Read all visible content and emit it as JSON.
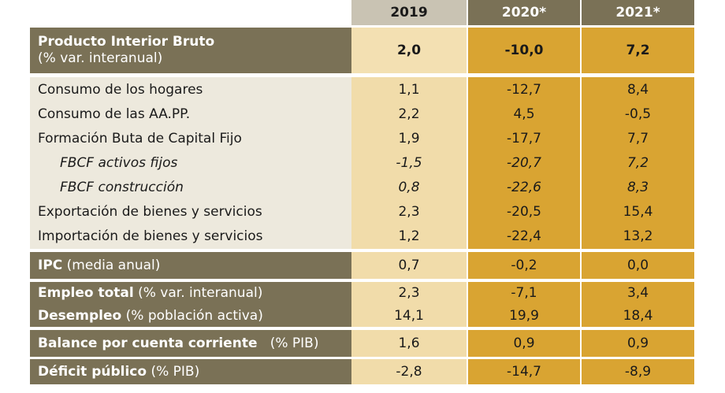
{
  "header": {
    "y2019": "2019",
    "y2020": "2020*",
    "y2021": "2021*"
  },
  "rows": [
    {
      "label": "Producto Interior Bruto",
      "sub": "(% var. interanual)",
      "v2019": "2,0",
      "v2020": "-10,0",
      "v2021": "7,2"
    },
    {
      "label": "Consumo de los hogares",
      "v2019": "1,1",
      "v2020": "-12,7",
      "v2021": "8,4"
    },
    {
      "label": "Consumo de las AA.PP.",
      "v2019": "2,2",
      "v2020": "4,5",
      "v2021": "-0,5"
    },
    {
      "label": "Formación Buta de Capital Fijo",
      "v2019": "1,9",
      "v2020": "-17,7",
      "v2021": "7,7"
    },
    {
      "label": "FBCF activos fijos",
      "v2019": "-1,5",
      "v2020": "-20,7",
      "v2021": "7,2"
    },
    {
      "label": "FBCF construcción",
      "v2019": "0,8",
      "v2020": "-22,6",
      "v2021": "8,3"
    },
    {
      "label": "Exportación de bienes y servicios",
      "v2019": "2,3",
      "v2020": "-20,5",
      "v2021": "15,4"
    },
    {
      "label": "Importación de bienes y servicios",
      "v2019": "1,2",
      "v2020": "-22,4",
      "v2021": "13,2"
    },
    {
      "label": "IPC",
      "sub": "(media anual)",
      "v2019": "0,7",
      "v2020": "-0,2",
      "v2021": "0,0"
    },
    {
      "label": "Empleo total",
      "sub": "(% var. interanual)",
      "v2019": "2,3",
      "v2020": "-7,1",
      "v2021": "3,4"
    },
    {
      "label": "Desempleo",
      "sub": "(% población activa)",
      "v2019": "14,1",
      "v2020": "19,9",
      "v2021": "18,4"
    },
    {
      "label": "Balance por cuenta corriente",
      "sub": "(% PIB)",
      "v2019": "1,6",
      "v2020": "0,9",
      "v2021": "0,9"
    },
    {
      "label": "Déficit público",
      "sub": "(% PIB)",
      "v2019": "-2,8",
      "v2020": "-14,7",
      "v2021": "-8,9"
    }
  ]
}
